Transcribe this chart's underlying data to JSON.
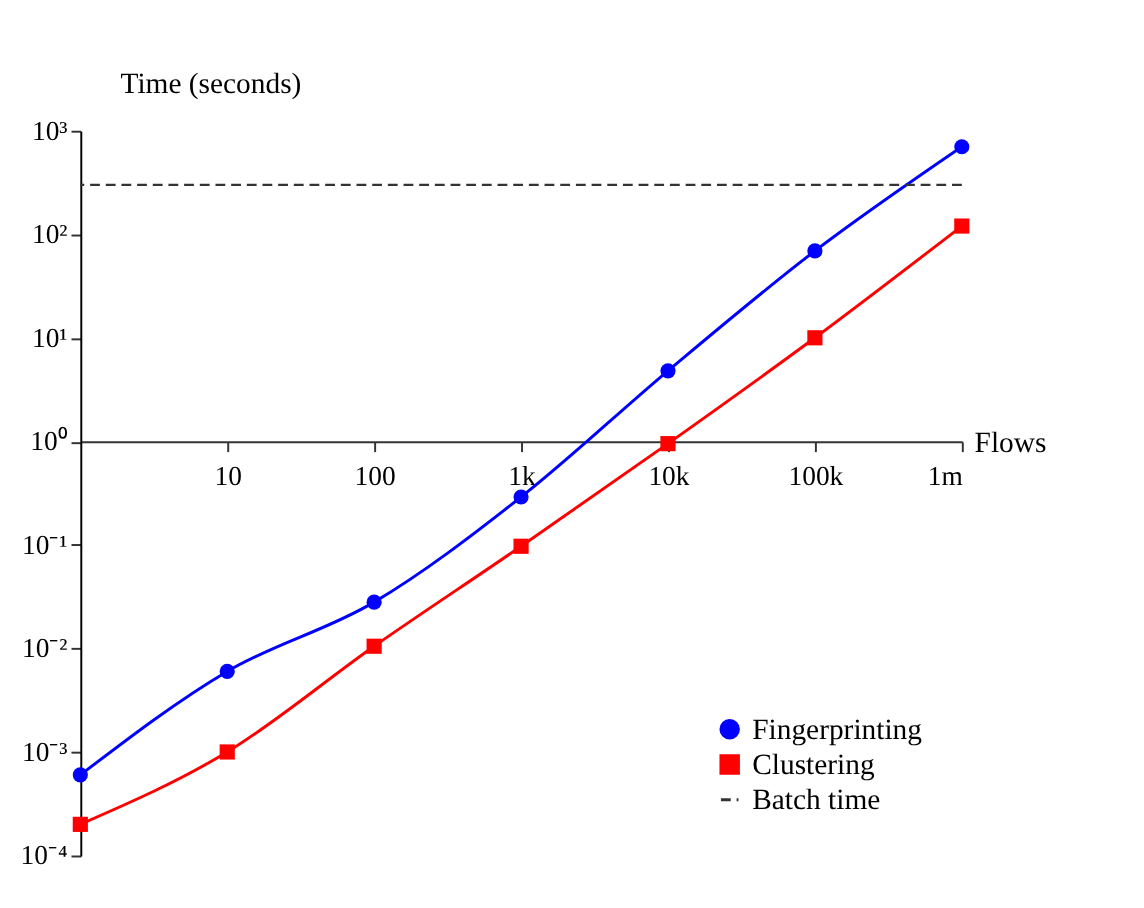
{
  "chart_data": {
    "type": "line",
    "ylabel": "Time (seconds)",
    "xlabel": "Flows",
    "x": [
      1,
      10,
      100,
      1000,
      10000,
      100000,
      1000000
    ],
    "series": [
      {
        "name": "Fingerprinting",
        "color": "#0000ff",
        "marker": "circle",
        "values": [
          0.0006,
          0.006,
          0.028,
          0.29,
          4.8,
          69,
          700
        ]
      },
      {
        "name": "Clustering",
        "color": "#ff0000",
        "marker": "square",
        "values": [
          0.0002,
          0.001,
          0.0105,
          0.097,
          0.95,
          10,
          120
        ]
      }
    ],
    "ref_lines": [
      {
        "axis": "y",
        "value": 300,
        "label": "Batch time",
        "color": "#333333",
        "line_style": "dashed"
      }
    ],
    "log": "xy",
    "xlim": [
      1,
      1000000
    ],
    "ylim": [
      0.0001,
      1000
    ],
    "xticks": [
      10,
      100,
      {
        "value": 1000,
        "label": "1k"
      },
      {
        "value": 10000,
        "label": "10k"
      },
      {
        "value": 100000,
        "label": "100k"
      },
      {
        "value": 1000000,
        "label": "1m"
      }
    ],
    "yticks": [
      {
        "value": 0.0001,
        "label": "10⁻⁴"
      },
      {
        "value": 0.001,
        "label": "10⁻³"
      },
      {
        "value": 0.01,
        "label": "10⁻²"
      },
      {
        "value": 0.1,
        "label": "10⁻¹"
      },
      {
        "value": 1,
        "label": "10⁰"
      },
      {
        "value": 10,
        "label": "10¹"
      },
      {
        "value": 100,
        "label": "10²"
      },
      {
        "value": 1000,
        "label": "10³"
      }
    ],
    "grid": false,
    "legend": "bottom right"
  }
}
